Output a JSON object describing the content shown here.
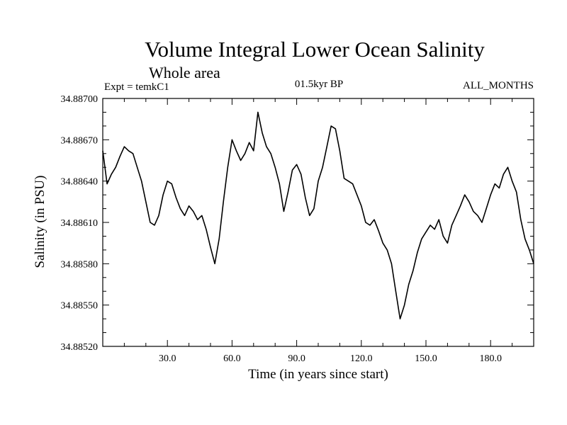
{
  "chart_data": {
    "type": "line",
    "title": "Volume Integral Lower Ocean Salinity",
    "subtitle": "Whole area",
    "experiment": "Expt = temkC1",
    "period": "01.5kyr BP",
    "months": "ALL_MONTHS",
    "xlabel": "Time (in years since start)",
    "ylabel": "Salinity (in PSU)",
    "xlim": [
      0,
      200
    ],
    "ylim": [
      34.8852,
      34.887
    ],
    "x_ticks": [
      "30.0",
      "60.0",
      "90.0",
      "120.0",
      "150.0",
      "180.0"
    ],
    "x_tick_values": [
      30,
      60,
      90,
      120,
      150,
      180
    ],
    "y_ticks": [
      "34.88520",
      "34.88550",
      "34.88580",
      "34.88610",
      "34.88640",
      "34.88670",
      "34.88700"
    ],
    "y_tick_values": [
      34.8852,
      34.8855,
      34.8858,
      34.8861,
      34.8864,
      34.8867,
      34.887
    ],
    "series": [
      {
        "name": "salinity",
        "x": [
          0,
          2,
          4,
          6,
          8,
          10,
          12,
          14,
          16,
          18,
          20,
          22,
          24,
          26,
          28,
          30,
          32,
          34,
          36,
          38,
          40,
          42,
          44,
          46,
          48,
          50,
          52,
          54,
          56,
          58,
          60,
          62,
          64,
          66,
          68,
          70,
          72,
          74,
          76,
          78,
          80,
          82,
          84,
          86,
          88,
          90,
          92,
          94,
          96,
          98,
          100,
          102,
          104,
          106,
          108,
          110,
          112,
          114,
          116,
          118,
          120,
          122,
          124,
          126,
          128,
          130,
          132,
          134,
          136,
          138,
          140,
          142,
          144,
          146,
          148,
          150,
          152,
          154,
          156,
          158,
          160,
          162,
          164,
          166,
          168,
          170,
          172,
          174,
          176,
          178,
          180,
          182,
          184,
          186,
          188,
          190,
          192,
          194,
          196,
          198,
          200
        ],
        "y": [
          34.88662,
          34.88638,
          34.88645,
          34.8865,
          34.88658,
          34.88665,
          34.88662,
          34.8866,
          34.8865,
          34.8864,
          34.88625,
          34.8861,
          34.88608,
          34.88615,
          34.8863,
          34.8864,
          34.88638,
          34.88628,
          34.8862,
          34.88615,
          34.88622,
          34.88618,
          34.88612,
          34.88615,
          34.88605,
          34.88592,
          34.8858,
          34.88598,
          34.88625,
          34.8865,
          34.8867,
          34.88662,
          34.88655,
          34.8866,
          34.88668,
          34.88662,
          34.8869,
          34.88675,
          34.88665,
          34.8866,
          34.8865,
          34.88638,
          34.88618,
          34.88632,
          34.88648,
          34.88652,
          34.88645,
          34.88628,
          34.88615,
          34.8862,
          34.8864,
          34.8865,
          34.88665,
          34.8868,
          34.88678,
          34.88662,
          34.88642,
          34.8864,
          34.88638,
          34.8863,
          34.88622,
          34.8861,
          34.88608,
          34.88612,
          34.88604,
          34.88595,
          34.8859,
          34.8858,
          34.8856,
          34.8854,
          34.8855,
          34.88565,
          34.88575,
          34.88588,
          34.88598,
          34.88603,
          34.88608,
          34.88605,
          34.88612,
          34.886,
          34.88595,
          34.88608,
          34.88615,
          34.88622,
          34.8863,
          34.88625,
          34.88618,
          34.88615,
          34.8861,
          34.8862,
          34.8863,
          34.88638,
          34.88635,
          34.88645,
          34.8865,
          34.8864,
          34.88632,
          34.88612,
          34.88598,
          34.8859,
          34.8858
        ]
      }
    ]
  }
}
